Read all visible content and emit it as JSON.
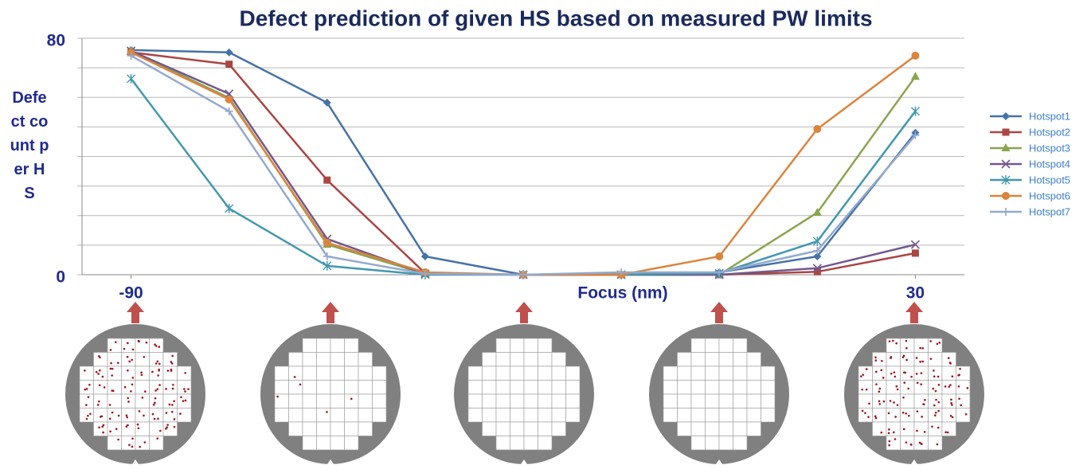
{
  "chart_data": {
    "type": "line",
    "title": "Defect prediction of given HS based on measured PW limits",
    "x_label": "Focus (nm)",
    "y_label": "Defect count per HS",
    "x": [
      -90,
      -75,
      -60,
      -45,
      -30,
      -15,
      0,
      15,
      30
    ],
    "xlim": [
      -97.5,
      37.5
    ],
    "xticks": [
      -90,
      30
    ],
    "ylim": [
      0,
      80
    ],
    "yticks": [
      0,
      80
    ],
    "ygrid": [
      0,
      10,
      20,
      30,
      40,
      50,
      60,
      70,
      80
    ],
    "legend": "right",
    "series": [
      {
        "name": "Hotspot1",
        "color": "#4572a7",
        "marker": "diamond",
        "values": [
          76,
          75.2,
          58.2,
          6.2,
          0,
          0,
          0.8,
          6.2,
          48
        ]
      },
      {
        "name": "Hotspot2",
        "color": "#aa4643",
        "marker": "square",
        "values": [
          75.2,
          71.2,
          32,
          0.5,
          0,
          0,
          0,
          1,
          7.3
        ]
      },
      {
        "name": "Hotspot3",
        "color": "#89a54e",
        "marker": "triangle",
        "values": [
          75.7,
          59.8,
          10.2,
          0.3,
          0,
          0,
          0,
          21,
          67
        ]
      },
      {
        "name": "Hotspot4",
        "color": "#71588f",
        "marker": "x",
        "values": [
          75.7,
          61.2,
          12.1,
          0.3,
          0,
          0,
          0,
          2.2,
          10.2
        ]
      },
      {
        "name": "Hotspot5",
        "color": "#4198af",
        "marker": "star",
        "values": [
          66.3,
          22.4,
          3,
          0,
          0,
          0,
          0.5,
          11.3,
          55.3
        ]
      },
      {
        "name": "Hotspot6",
        "color": "#db843d",
        "marker": "circle",
        "values": [
          75.2,
          59.3,
          10.8,
          0.8,
          0,
          0,
          6.2,
          49.3,
          74.1
        ]
      },
      {
        "name": "Hotspot7",
        "color": "#93a9cf",
        "marker": "plus",
        "values": [
          74.1,
          55.3,
          6.2,
          0.3,
          0,
          0.8,
          0.8,
          8.1,
          47.2
        ]
      }
    ]
  }
}
